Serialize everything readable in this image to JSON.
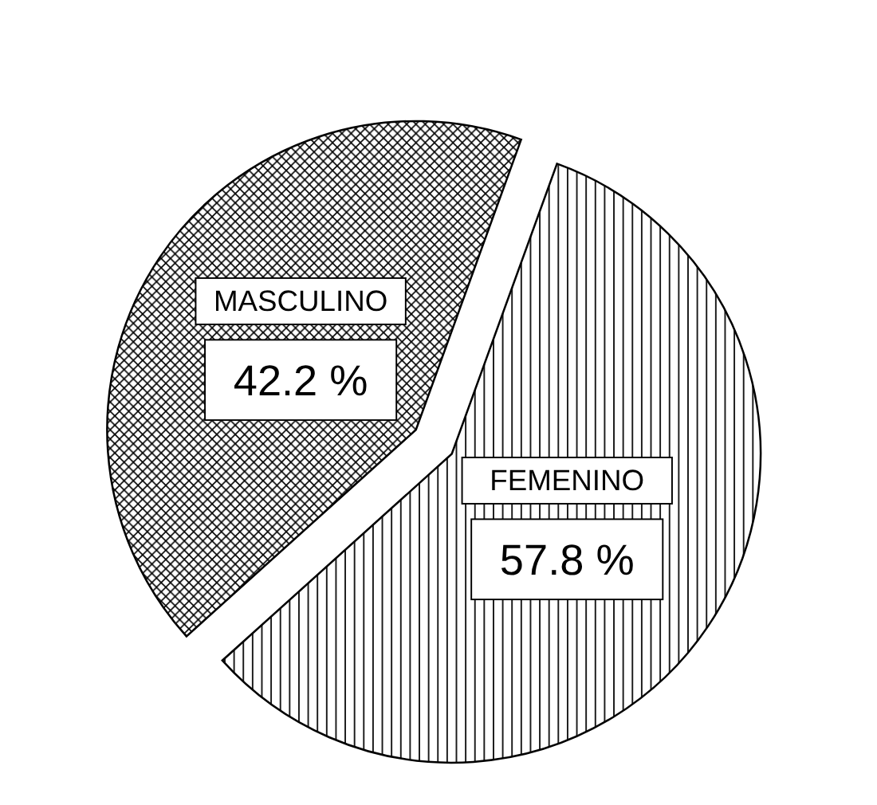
{
  "chart_data": {
    "type": "pie",
    "categories": [
      "MASCULINO",
      "FEMENINO"
    ],
    "values": [
      42.2,
      57.8
    ],
    "colors": [
      "#000000",
      "#000000"
    ],
    "value_labels": [
      "42.2 %",
      "57.8 %"
    ]
  }
}
